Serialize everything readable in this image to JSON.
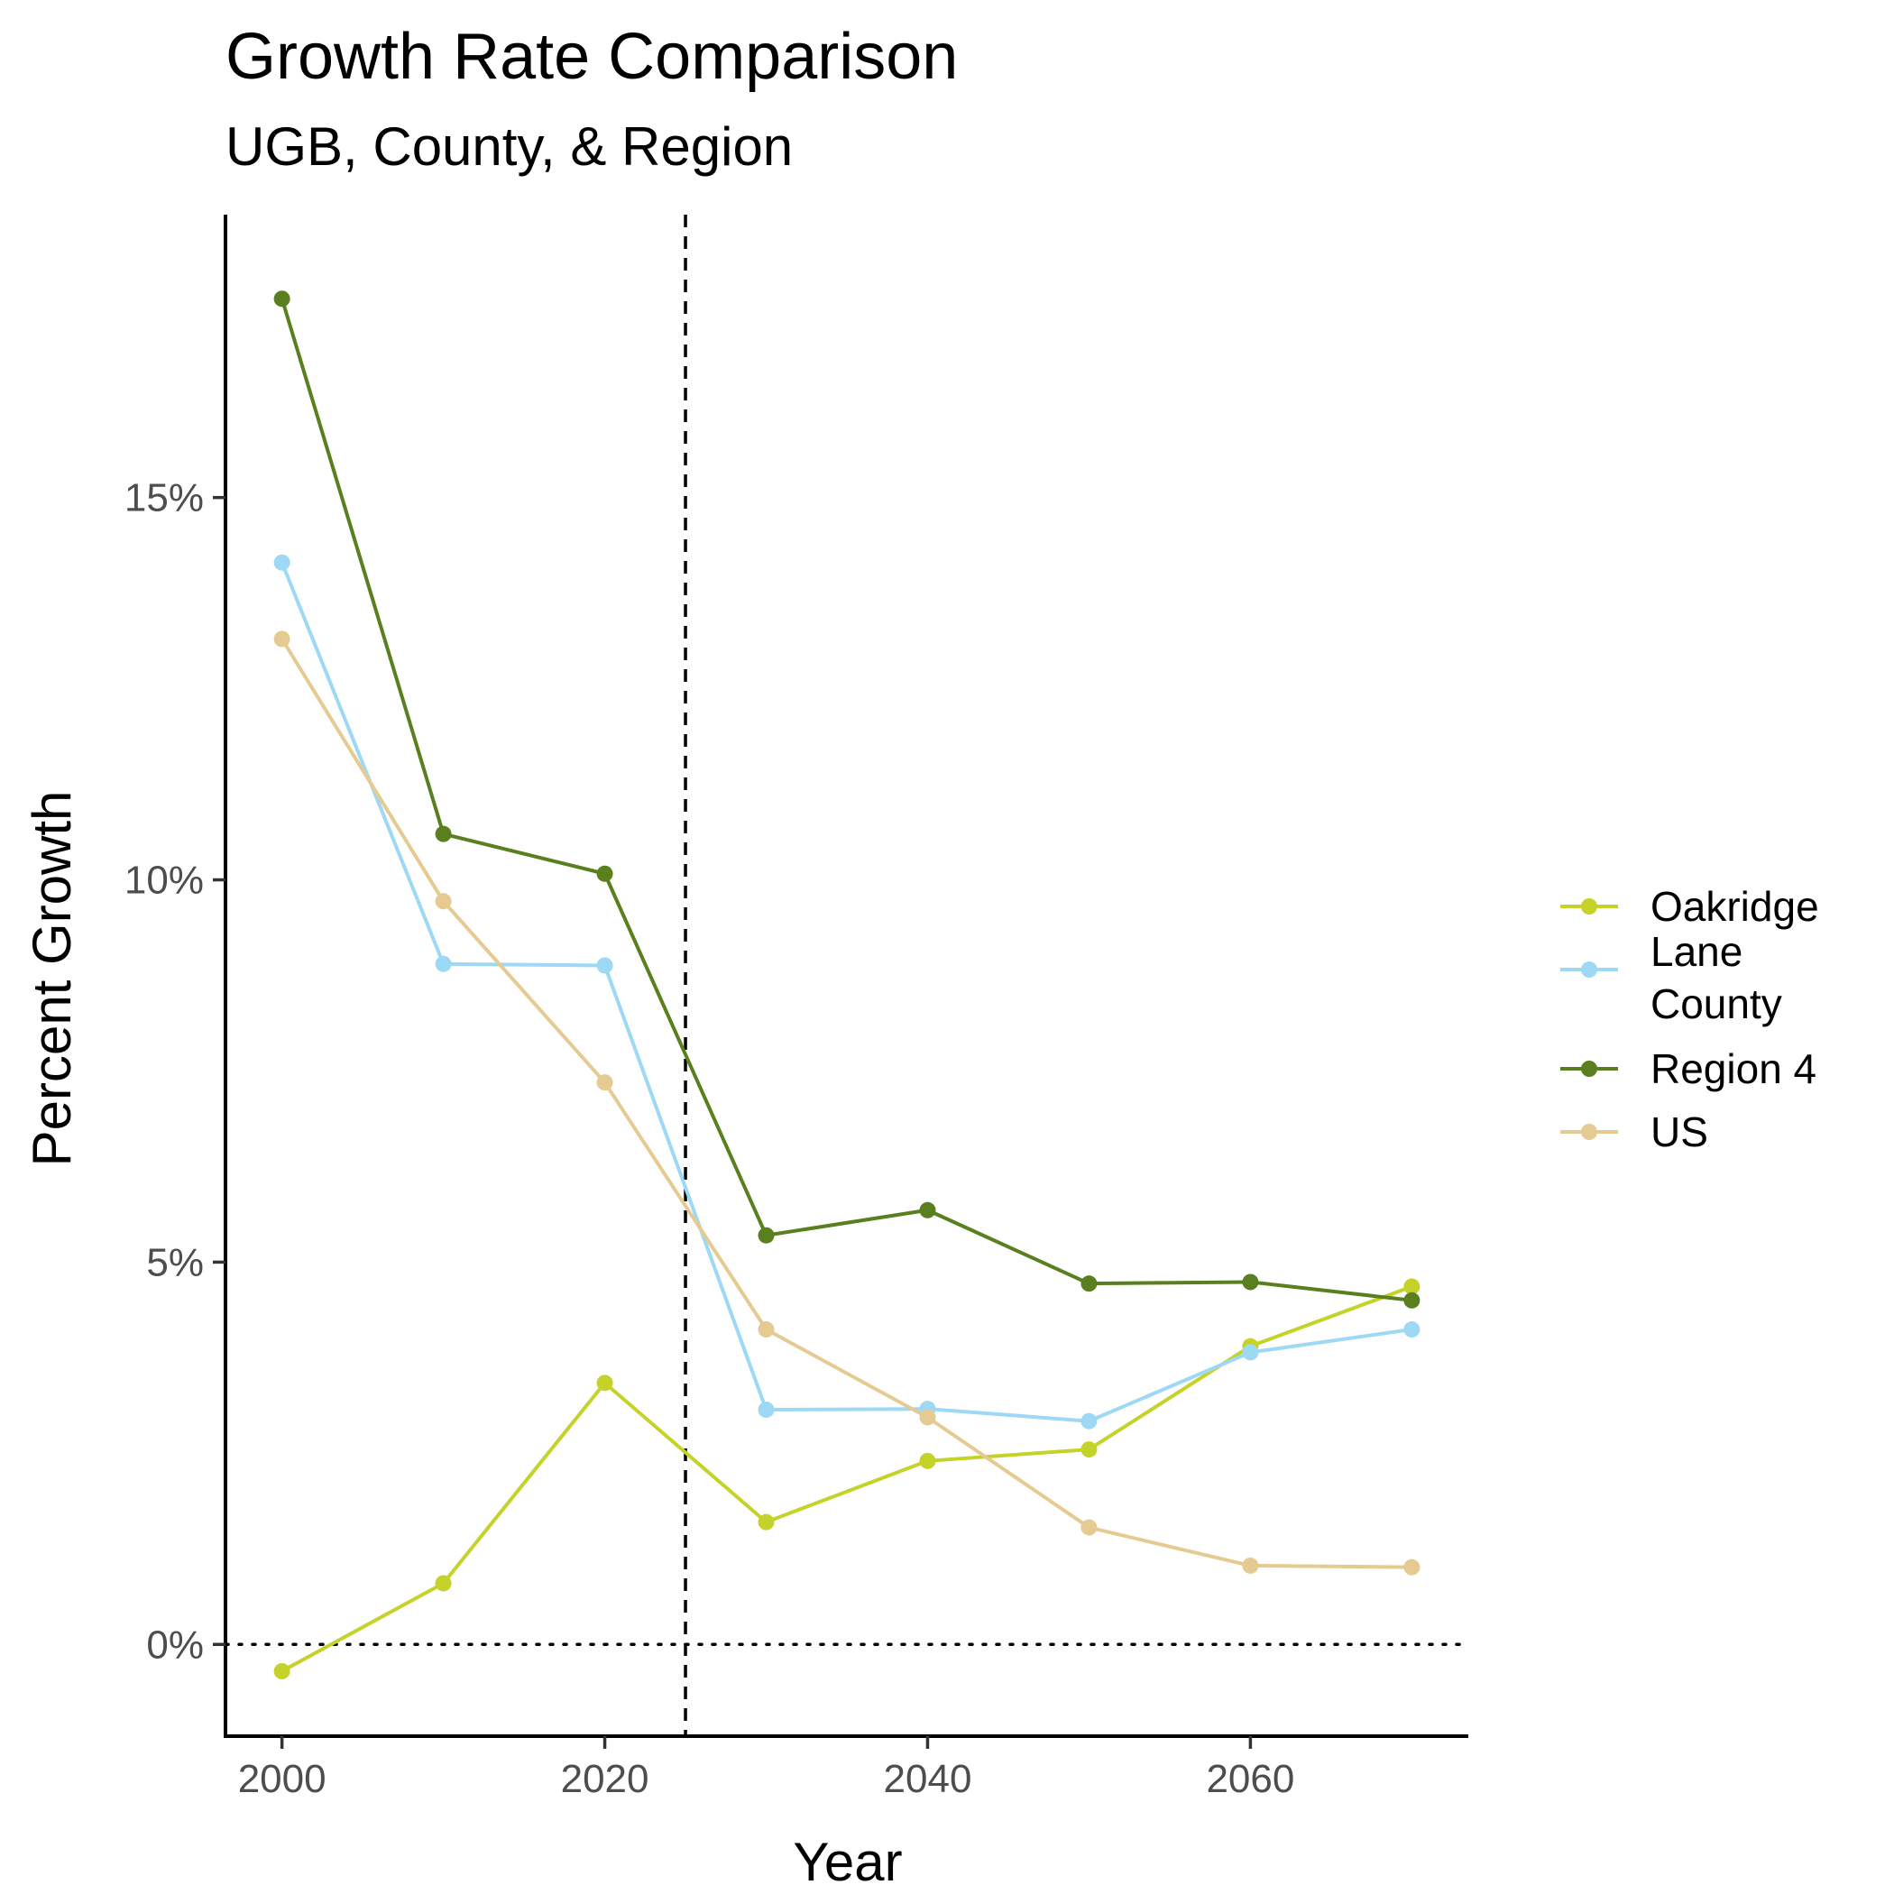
{
  "chart_data": {
    "type": "line",
    "title": "Growth Rate Comparison",
    "subtitle": "UGB, County, & Region",
    "xlabel": "Year",
    "ylabel": "Percent Growth",
    "x": [
      2000,
      2010,
      2020,
      2030,
      2040,
      2050,
      2060,
      2070
    ],
    "xlim": [
      1996.5,
      2073.5
    ],
    "ylim": [
      -1.2,
      18.7
    ],
    "x_ticks": [
      2000,
      2020,
      2040,
      2060
    ],
    "x_tick_labels": [
      "2000",
      "2020",
      "2040",
      "2060"
    ],
    "y_ticks": [
      0,
      5,
      10,
      15
    ],
    "y_tick_labels": [
      "0%",
      "5%",
      "10%",
      "15%"
    ],
    "reference_lines": [
      {
        "orientation": "vertical",
        "value": 2025,
        "style": "dashed"
      },
      {
        "orientation": "horizontal",
        "value": 0,
        "style": "dotted"
      }
    ],
    "grid": false,
    "legend_position": "right",
    "series": [
      {
        "name": "Oakridge",
        "color": "#c5d22a",
        "values": [
          -0.35,
          0.8,
          3.42,
          1.6,
          2.4,
          2.55,
          3.9,
          4.68
        ]
      },
      {
        "name": "Lane County",
        "color": "#9dd8f5",
        "values": [
          14.15,
          8.9,
          8.88,
          3.07,
          3.08,
          2.92,
          3.82,
          4.12
        ]
      },
      {
        "name": "Region 4",
        "color": "#5a7f1f",
        "values": [
          17.6,
          10.6,
          10.08,
          5.35,
          5.68,
          4.72,
          4.74,
          4.5
        ]
      },
      {
        "name": "US",
        "color": "#e5cb92",
        "values": [
          13.15,
          9.72,
          7.35,
          4.12,
          2.97,
          1.53,
          1.03,
          1.01
        ]
      }
    ]
  }
}
